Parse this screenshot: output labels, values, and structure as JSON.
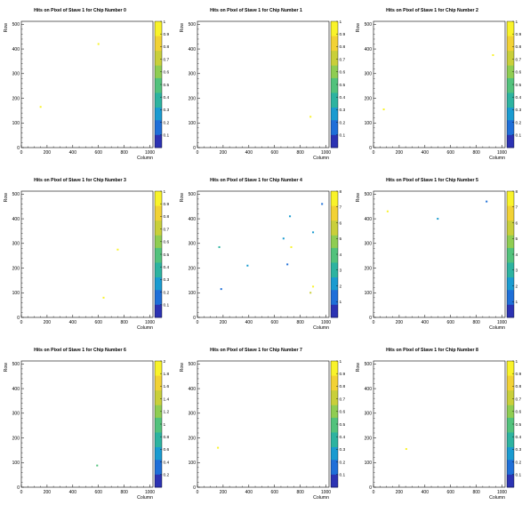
{
  "colorscale": [
    "#2c33b3",
    "#1f6fd8",
    "#1a9bd0",
    "#2db3a0",
    "#52c27c",
    "#8fcd52",
    "#c9cf3a",
    "#f2d235",
    "#f9f32a"
  ],
  "chart_data": [
    {
      "type": "heatmap",
      "title": "Hits on Pixel of Stave 1 for Chip Number  0",
      "xlabel": "Column",
      "ylabel": "Row",
      "xlim": [
        0,
        1024
      ],
      "ylim": [
        0,
        512
      ],
      "xticks": [
        "0",
        "200",
        "400",
        "600",
        "800",
        "1000"
      ],
      "yticks": [
        "0",
        "100",
        "200",
        "300",
        "400",
        "500"
      ],
      "zmax": 1,
      "zticks": [
        "0.1",
        "0.2",
        "0.3",
        "0.4",
        "0.5",
        "0.6",
        "0.7",
        "0.8",
        "0.9",
        "1"
      ],
      "points": [
        {
          "x": 600,
          "y": 420,
          "z": 1
        },
        {
          "x": 150,
          "y": 165,
          "z": 1
        }
      ]
    },
    {
      "type": "heatmap",
      "title": "Hits on Pixel of Stave 1 for Chip Number  1",
      "xlabel": "Column",
      "ylabel": "Row",
      "xlim": [
        0,
        1024
      ],
      "ylim": [
        0,
        512
      ],
      "xticks": [
        "0",
        "200",
        "400",
        "600",
        "800",
        "1000"
      ],
      "yticks": [
        "0",
        "100",
        "200",
        "300",
        "400",
        "500"
      ],
      "zmax": 1,
      "zticks": [
        "0.1",
        "0.2",
        "0.3",
        "0.4",
        "0.5",
        "0.6",
        "0.7",
        "0.8",
        "0.9",
        "1"
      ],
      "points": [
        {
          "x": 880,
          "y": 125,
          "z": 1
        }
      ]
    },
    {
      "type": "heatmap",
      "title": "Hits on Pixel of Stave 1 for Chip Number  2",
      "xlabel": "Column",
      "ylabel": "Row",
      "xlim": [
        0,
        1024
      ],
      "ylim": [
        0,
        512
      ],
      "xticks": [
        "0",
        "200",
        "400",
        "600",
        "800",
        "1000"
      ],
      "yticks": [
        "0",
        "100",
        "200",
        "300",
        "400",
        "500"
      ],
      "zmax": 1,
      "zticks": [
        "0.1",
        "0.2",
        "0.3",
        "0.4",
        "0.5",
        "0.6",
        "0.7",
        "0.8",
        "0.9",
        "1"
      ],
      "points": [
        {
          "x": 930,
          "y": 375,
          "z": 1
        },
        {
          "x": 80,
          "y": 155,
          "z": 1
        }
      ]
    },
    {
      "type": "heatmap",
      "title": "Hits on Pixel of Stave 1 for Chip Number  3",
      "xlabel": "Column",
      "ylabel": "Row",
      "xlim": [
        0,
        1024
      ],
      "ylim": [
        0,
        512
      ],
      "xticks": [
        "0",
        "200",
        "400",
        "600",
        "800",
        "1000"
      ],
      "yticks": [
        "0",
        "100",
        "200",
        "300",
        "400",
        "500"
      ],
      "zmax": 1,
      "zticks": [
        "0.1",
        "0.2",
        "0.3",
        "0.4",
        "0.5",
        "0.6",
        "0.7",
        "0.8",
        "0.9",
        "1"
      ],
      "points": [
        {
          "x": 750,
          "y": 275,
          "z": 1
        },
        {
          "x": 640,
          "y": 80,
          "z": 1
        }
      ]
    },
    {
      "type": "heatmap",
      "title": "Hits on Pixel of Stave 1 for Chip Number  4",
      "xlabel": "Column",
      "ylabel": "Row",
      "xlim": [
        0,
        1024
      ],
      "ylim": [
        0,
        512
      ],
      "xticks": [
        "0",
        "200",
        "400",
        "600",
        "800",
        "1000"
      ],
      "yticks": [
        "0",
        "100",
        "200",
        "300",
        "400",
        "500"
      ],
      "zmax": 8,
      "zticks": [
        "1",
        "2",
        "3",
        "4",
        "5",
        "6",
        "7",
        "8"
      ],
      "points": [
        {
          "x": 970,
          "y": 460,
          "z": 1
        },
        {
          "x": 720,
          "y": 410,
          "z": 2
        },
        {
          "x": 900,
          "y": 345,
          "z": 2
        },
        {
          "x": 670,
          "y": 320,
          "z": 2
        },
        {
          "x": 730,
          "y": 285,
          "z": 8
        },
        {
          "x": 170,
          "y": 285,
          "z": 3
        },
        {
          "x": 390,
          "y": 210,
          "z": 2
        },
        {
          "x": 700,
          "y": 215,
          "z": 1
        },
        {
          "x": 185,
          "y": 115,
          "z": 1
        },
        {
          "x": 900,
          "y": 125,
          "z": 8
        },
        {
          "x": 880,
          "y": 100,
          "z": 6
        }
      ]
    },
    {
      "type": "heatmap",
      "title": "Hits on Pixel of Stave 1 for Chip Number  5",
      "xlabel": "Column",
      "ylabel": "Row",
      "xlim": [
        0,
        1024
      ],
      "ylim": [
        0,
        512
      ],
      "xticks": [
        "0",
        "200",
        "400",
        "600",
        "800",
        "1000"
      ],
      "yticks": [
        "0",
        "100",
        "200",
        "300",
        "400",
        "500"
      ],
      "zmax": 8,
      "zticks": [
        "1",
        "2",
        "3",
        "4",
        "5",
        "6",
        "7",
        "8"
      ],
      "points": [
        {
          "x": 880,
          "y": 470,
          "z": 1
        },
        {
          "x": 110,
          "y": 430,
          "z": 8
        },
        {
          "x": 500,
          "y": 400,
          "z": 2
        }
      ]
    },
    {
      "type": "heatmap",
      "title": "Hits on Pixel of Stave 1 for Chip Number  6",
      "xlabel": "Column",
      "ylabel": "Row",
      "xlim": [
        0,
        1024
      ],
      "ylim": [
        0,
        512
      ],
      "xticks": [
        "0",
        "200",
        "400",
        "600",
        "800",
        "1000"
      ],
      "yticks": [
        "0",
        "100",
        "200",
        "300",
        "400",
        "500"
      ],
      "zmax": 2,
      "zticks": [
        "0.2",
        "0.4",
        "0.6",
        "0.8",
        "1",
        "1.2",
        "1.4",
        "1.6",
        "1.8",
        "2"
      ],
      "points": [
        {
          "x": 590,
          "y": 88,
          "z": 1
        }
      ]
    },
    {
      "type": "heatmap",
      "title": "Hits on Pixel of Stave 1 for Chip Number  7",
      "xlabel": "Column",
      "ylabel": "Row",
      "xlim": [
        0,
        1024
      ],
      "ylim": [
        0,
        512
      ],
      "xticks": [
        "0",
        "200",
        "400",
        "600",
        "800",
        "1000"
      ],
      "yticks": [
        "0",
        "100",
        "200",
        "300",
        "400",
        "500"
      ],
      "zmax": 1,
      "zticks": [
        "0.1",
        "0.2",
        "0.3",
        "0.4",
        "0.5",
        "0.6",
        "0.7",
        "0.8",
        "0.9",
        "1"
      ],
      "points": [
        {
          "x": 160,
          "y": 160,
          "z": 1
        }
      ]
    },
    {
      "type": "heatmap",
      "title": "Hits on Pixel of Stave 1 for Chip Number  8",
      "xlabel": "Column",
      "ylabel": "Row",
      "xlim": [
        0,
        1024
      ],
      "ylim": [
        0,
        512
      ],
      "xticks": [
        "0",
        "200",
        "400",
        "600",
        "800",
        "1000"
      ],
      "yticks": [
        "0",
        "100",
        "200",
        "300",
        "400",
        "500"
      ],
      "zmax": 1,
      "zticks": [
        "0.1",
        "0.2",
        "0.3",
        "0.4",
        "0.5",
        "0.6",
        "0.7",
        "0.8",
        "0.9",
        "1"
      ],
      "points": [
        {
          "x": 255,
          "y": 155,
          "z": 1
        }
      ]
    }
  ]
}
